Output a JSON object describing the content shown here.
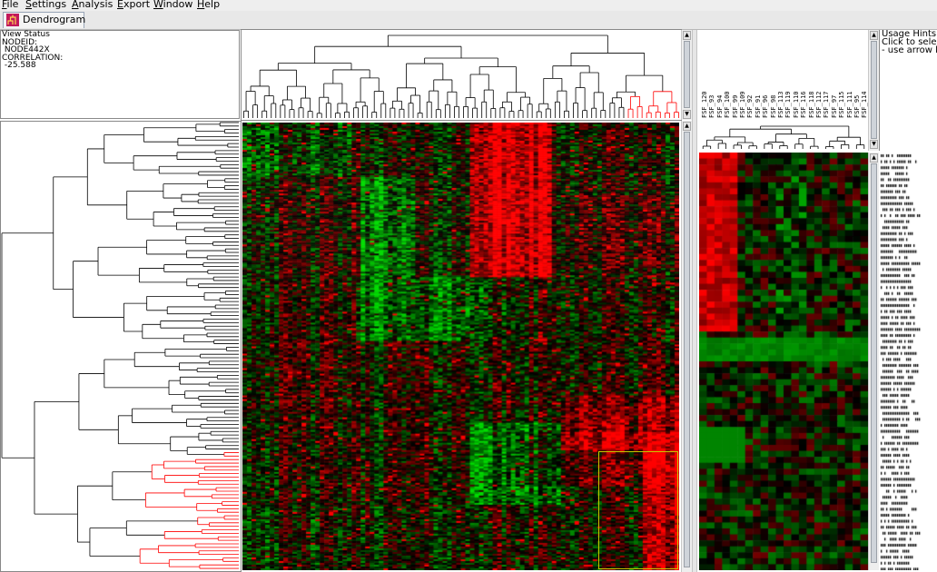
{
  "menu": {
    "items": [
      {
        "key": "F",
        "rest": "ile"
      },
      {
        "key": "S",
        "rest": "ettings"
      },
      {
        "key": "A",
        "rest": "nalysis"
      },
      {
        "key": "E",
        "rest": "xport"
      },
      {
        "key": "W",
        "rest": "indow"
      },
      {
        "key": "H",
        "rest": "elp"
      }
    ]
  },
  "tab": {
    "label": "Dendrogram",
    "icon": "dendrogram-icon"
  },
  "status": {
    "title": "View Status",
    "node_label": "NODEID:",
    "node_value": " NODE442X",
    "corr_label": "CORRELATION:",
    "corr_value": " -25.588"
  },
  "hints": {
    "title": "Usage Hints",
    "line1": "Click to select",
    "line2": " - use arrow ke"
  },
  "columns": [
    "FSF_120",
    "FSF_93",
    "FSF_94",
    "FSF_100",
    "FSF_99",
    "FSF_109",
    "FSF_92",
    "FSF_91",
    "FSF_96",
    "FSF_98",
    "FSF_113",
    "FSF_119",
    "FSF_110",
    "FSF_116",
    "FSF_118",
    "FSF_112",
    "FSF_117",
    "FSF_97",
    "FSF_115",
    "FSF_111",
    "FSF_95",
    "FSF_114"
  ],
  "colors": {
    "up": "#ff0000",
    "down": "#00c000",
    "neutral": "#000000",
    "selected_tree": "#ff0000",
    "selection_box": "#c8c800"
  }
}
